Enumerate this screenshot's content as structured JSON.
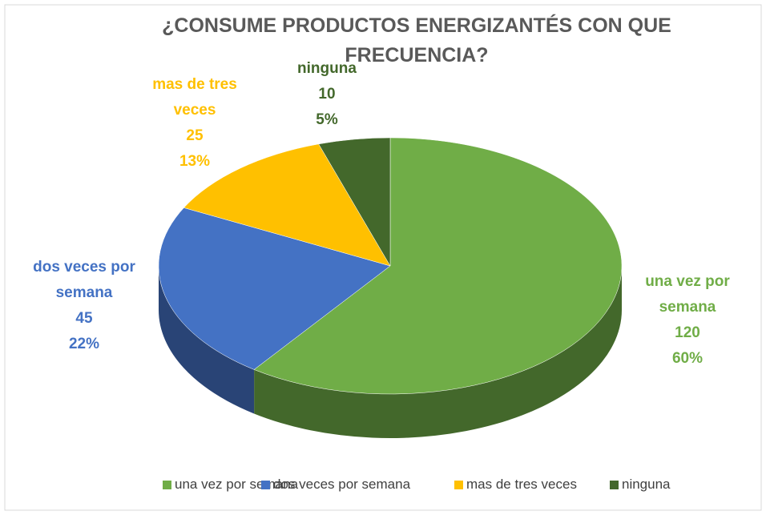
{
  "chart_data": {
    "type": "pie3d",
    "title": "¿CONSUME PRODUCTOS ENERGIZANTÉS CON QUE FRECUENCIA?",
    "categories": [
      "una vez por semana",
      "dos veces por semana",
      "mas de tres veces",
      "ninguna"
    ],
    "values": [
      120,
      45,
      25,
      10
    ],
    "percent_labels": [
      "60%",
      "22%",
      "13%",
      "5%"
    ],
    "colors": [
      "#70ad47",
      "#4472c4",
      "#ffc000",
      "#43682b"
    ],
    "legend": "bottom"
  }
}
